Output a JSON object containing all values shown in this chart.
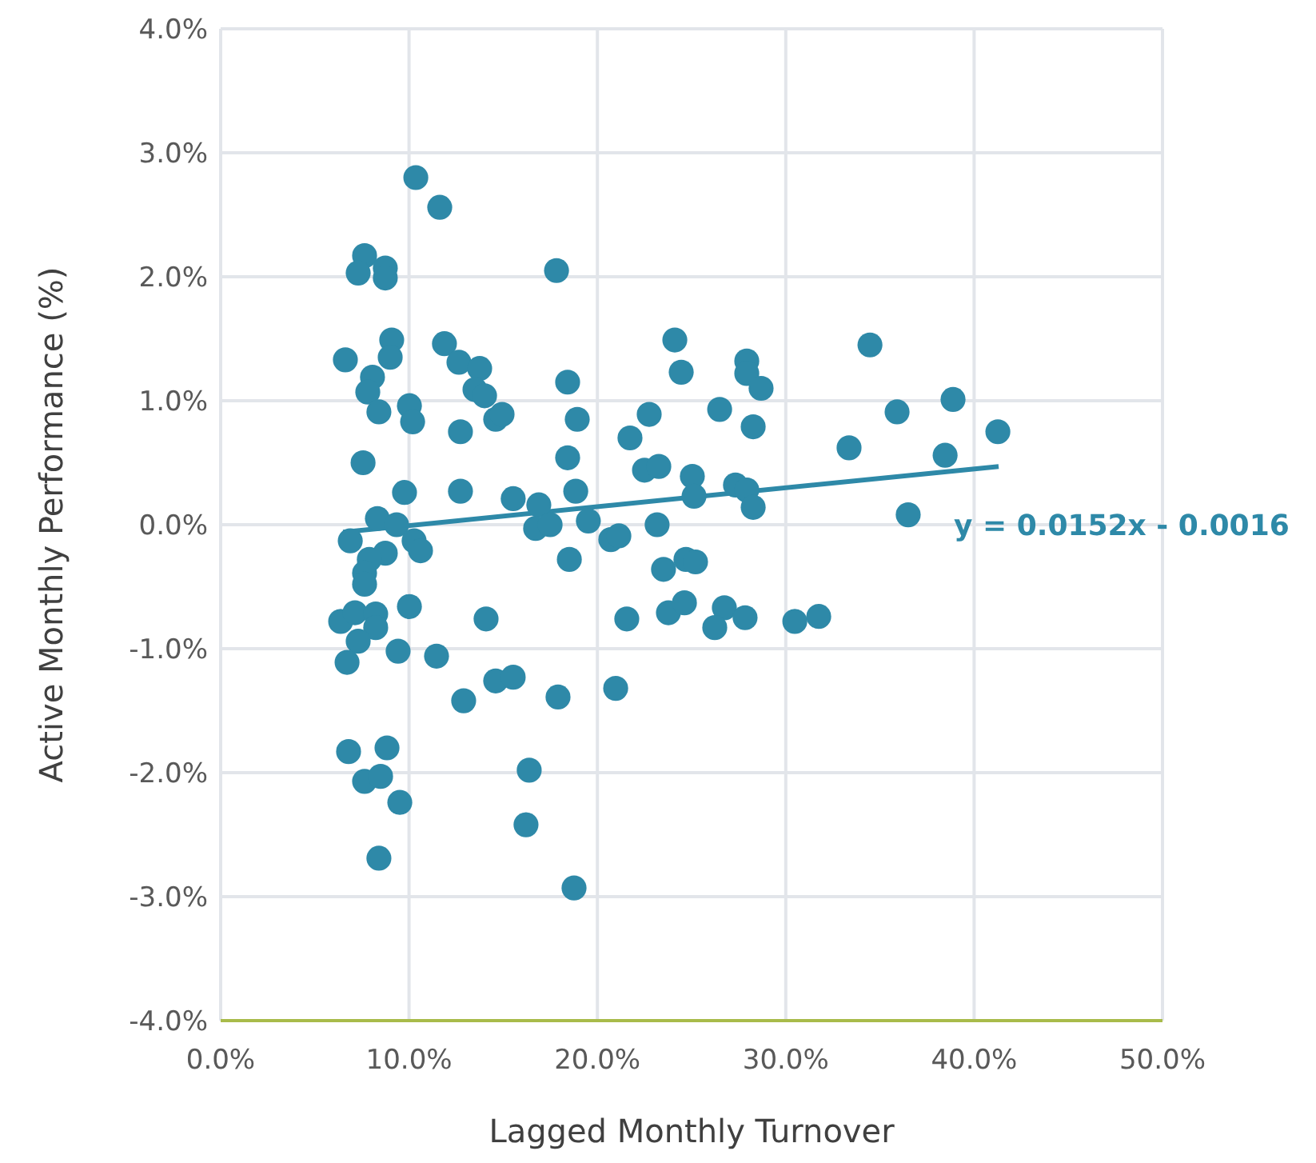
{
  "chart_data": {
    "type": "scatter",
    "xlabel": "Lagged Monthly Turnover",
    "ylabel": "Active Monthly Performance (%)",
    "xlim": [
      0,
      50
    ],
    "xticks": [
      {
        "value": 0,
        "label": "0.0%"
      },
      {
        "value": 10,
        "label": "10.0%"
      },
      {
        "value": 20,
        "label": "20.0%"
      },
      {
        "value": 30,
        "label": "30.0%"
      },
      {
        "value": 40,
        "label": "40.0%"
      },
      {
        "value": 50,
        "label": "50.0%"
      }
    ],
    "ylim": [
      -4,
      4
    ],
    "yticks": [
      {
        "value": -4,
        "label": "-4.0%"
      },
      {
        "value": -3,
        "label": "-3.0%"
      },
      {
        "value": -2,
        "label": "-2.0%"
      },
      {
        "value": -1,
        "label": "-1.0%"
      },
      {
        "value": 0,
        "label": "0.0%"
      },
      {
        "value": 1,
        "label": "1.0%"
      },
      {
        "value": 2,
        "label": "2.0%"
      },
      {
        "value": 3,
        "label": "3.0%"
      },
      {
        "value": 4,
        "label": "4.0%"
      }
    ],
    "grid": true,
    "annotations": [
      {
        "text": "y = 0.0152x - 0.0016",
        "x": 41.3,
        "y": 0.47
      }
    ],
    "series": [
      {
        "marker": "circle",
        "color": "#2e89a8",
        "x": [
          10.36,
          11.63,
          7.64,
          7.3,
          8.74,
          8.74,
          17.83,
          9.08,
          9.0,
          6.62,
          11.88,
          12.65,
          13.75,
          13.5,
          14.01,
          8.06,
          7.81,
          8.4,
          10.02,
          10.19,
          12.73,
          14.6,
          14.94,
          18.42,
          18.93,
          18.42,
          7.56,
          9.76,
          12.73,
          18.85,
          15.53,
          16.89,
          16.72,
          17.49,
          19.52,
          18.51,
          20.71,
          21.14,
          21.73,
          22.75,
          22.5,
          23.26,
          24.11,
          24.45,
          25.04,
          25.13,
          23.17,
          23.51,
          24.7,
          25.21,
          23.77,
          24.62,
          26.49,
          27.93,
          27.93,
          28.69,
          28.27,
          27.33,
          27.93,
          28.27,
          26.74,
          26.23,
          27.84,
          30.48,
          31.75,
          33.36,
          34.47,
          35.91,
          36.5,
          38.46,
          38.88,
          41.26,
          8.32,
          9.34,
          6.88,
          8.74,
          10.27,
          10.61,
          7.89,
          7.64,
          7.64,
          6.37,
          7.13,
          8.23,
          8.23,
          10.02,
          7.3,
          6.71,
          9.42,
          11.46,
          14.09,
          12.9,
          14.6,
          15.53,
          17.91,
          20.97,
          6.79,
          8.83,
          7.64,
          8.49,
          9.51,
          8.4,
          16.38,
          16.21,
          18.76,
          21.56
        ],
        "values": [
          2.8,
          2.56,
          2.17,
          2.03,
          2.07,
          1.99,
          2.05,
          1.49,
          1.35,
          1.33,
          1.46,
          1.31,
          1.26,
          1.09,
          1.04,
          1.19,
          1.07,
          0.91,
          0.96,
          0.83,
          0.75,
          0.85,
          0.89,
          1.15,
          0.85,
          0.54,
          0.5,
          0.26,
          0.27,
          0.27,
          0.21,
          0.16,
          -0.03,
          0.0,
          0.03,
          -0.28,
          -0.12,
          -0.09,
          0.7,
          0.89,
          0.44,
          0.47,
          1.49,
          1.23,
          0.39,
          0.23,
          0.0,
          -0.36,
          -0.28,
          -0.3,
          -0.71,
          -0.63,
          0.93,
          1.32,
          1.22,
          1.1,
          0.79,
          0.32,
          0.28,
          0.14,
          -0.67,
          -0.83,
          -0.75,
          -0.78,
          -0.74,
          0.62,
          1.45,
          0.91,
          0.08,
          0.56,
          1.01,
          0.75,
          0.05,
          0.0,
          -0.13,
          -0.23,
          -0.13,
          -0.21,
          -0.28,
          -0.39,
          -0.48,
          -0.78,
          -0.71,
          -0.72,
          -0.83,
          -0.66,
          -0.94,
          -1.11,
          -1.02,
          -1.06,
          -0.76,
          -1.42,
          -1.26,
          -1.23,
          -1.39,
          -1.32,
          -1.83,
          -1.8,
          -2.07,
          -2.03,
          -2.24,
          -2.69,
          -1.98,
          -2.42,
          -2.93,
          -0.76
        ]
      },
      {
        "type": "line",
        "color": "#2e89a8",
        "x": [
          6.5,
          41.3
        ],
        "values": [
          -0.06,
          0.47
        ]
      }
    ]
  }
}
